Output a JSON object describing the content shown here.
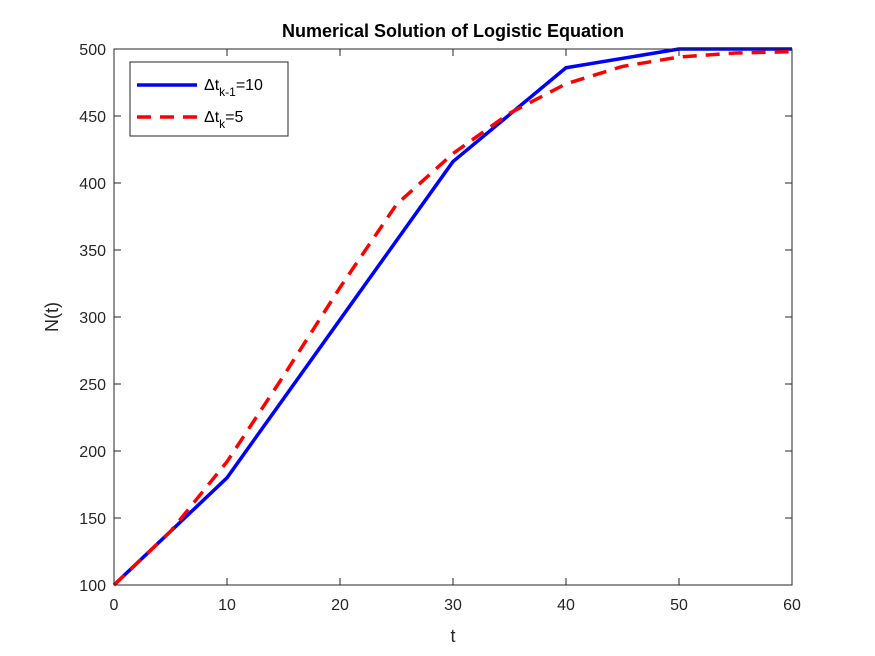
{
  "chart_data": {
    "type": "line",
    "title": "Numerical Solution of Logistic Equation",
    "xlabel": "t",
    "ylabel": "N(t)",
    "xlim": [
      0,
      60
    ],
    "ylim": [
      100,
      500
    ],
    "xticks": [
      0,
      10,
      20,
      30,
      40,
      50,
      60
    ],
    "yticks": [
      100,
      150,
      200,
      250,
      300,
      350,
      400,
      450,
      500
    ],
    "grid": false,
    "legend_position": "top-left",
    "series": [
      {
        "name": "Δt_{k-1}=10",
        "name_base": "Δt",
        "name_sub": "k-1",
        "name_tail": "=10",
        "color": "#0000ff",
        "style": "solid",
        "x": [
          0,
          10,
          20,
          30,
          40,
          50,
          60
        ],
        "y": [
          100,
          180,
          298,
          416,
          486,
          500,
          500
        ]
      },
      {
        "name": "Δt_k=5",
        "name_base": "Δt",
        "name_sub": "k",
        "name_tail": "=5",
        "color": "#ff0000",
        "style": "dashed",
        "x": [
          0,
          5,
          10,
          15,
          20,
          25,
          30,
          35,
          40,
          45,
          50,
          55,
          60
        ],
        "y": [
          100,
          140,
          192,
          256,
          322,
          384,
          422,
          452,
          474,
          487,
          494,
          497,
          498
        ]
      }
    ]
  }
}
